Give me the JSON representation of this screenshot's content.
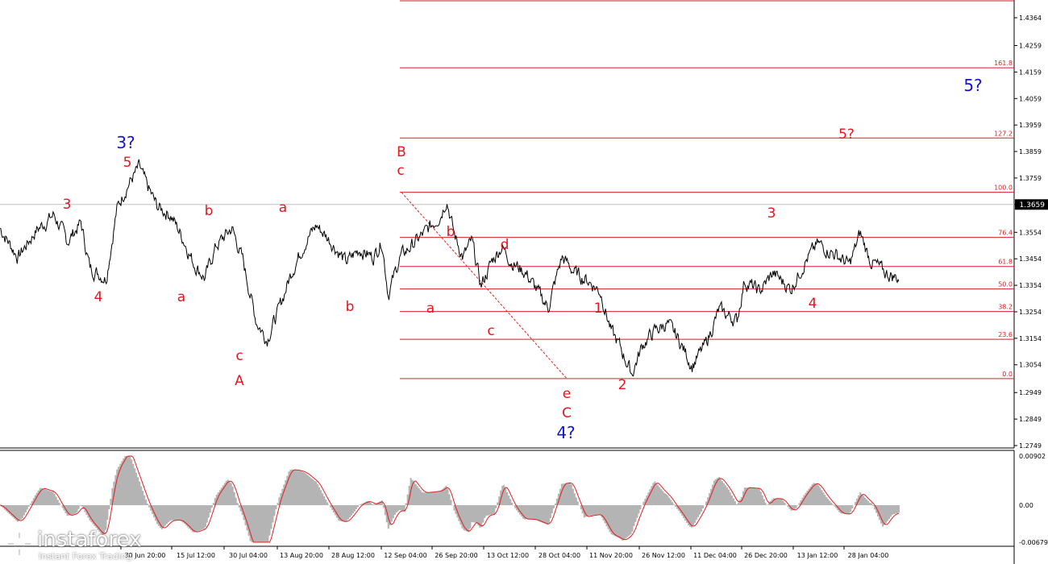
{
  "colors": {
    "price": "#000000",
    "wave_red": "#e8141c",
    "wave_blue": "#1414d2",
    "fib_line": "#d81e28",
    "fib_text": "#e02020",
    "axis": "#000000",
    "osc_hist": "#b4b4b4",
    "osc_line": "#e02020",
    "current_line": "#c0c0c0"
  },
  "logo": {
    "name": "instaforex",
    "tagline": "Instant Forex Trading",
    "icon": "instaforex-logo-icon"
  },
  "chart_data": {
    "type": "line",
    "instrument_panel": {
      "y_ticks": [
        "1.4364",
        "1.4259",
        "1.4159",
        "1.4059",
        "1.3959",
        "1.3859",
        "1.3759",
        "1.3659",
        "1.3554",
        "1.3454",
        "1.3354",
        "1.3254",
        "1.3154",
        "1.3054",
        "1.2949",
        "1.2849",
        "1.2749"
      ],
      "ylim": [
        1.2749,
        1.4364
      ],
      "current_price": "1.3659",
      "x_ticks": [
        "30 Jun 20:00",
        "15 Jul 12:00",
        "30 Jul 04:00",
        "13 Aug 20:00",
        "28 Aug 12:00",
        "12 Sep 04:00",
        "26 Sep 20:00",
        "13 Oct 12:00",
        "28 Oct 04:00",
        "11 Nov 20:00",
        "26 Nov 12:00",
        "11 Dec 04:00",
        "26 Dec 20:00",
        "13 Jan 12:00",
        "28 Jan 04:00"
      ],
      "price_path": [
        [
          0,
          1.357
        ],
        [
          0.02,
          1.346
        ],
        [
          0.04,
          1.356
        ],
        [
          0.06,
          1.362
        ],
        [
          0.075,
          1.352
        ],
        [
          0.09,
          1.359
        ],
        [
          0.1,
          1.342
        ],
        [
          0.118,
          1.338
        ],
        [
          0.13,
          1.364
        ],
        [
          0.14,
          1.372
        ],
        [
          0.155,
          1.38
        ],
        [
          0.162,
          1.374
        ],
        [
          0.175,
          1.365
        ],
        [
          0.19,
          1.362
        ],
        [
          0.205,
          1.352
        ],
        [
          0.215,
          1.344
        ],
        [
          0.228,
          1.338
        ],
        [
          0.24,
          1.35
        ],
        [
          0.258,
          1.357
        ],
        [
          0.27,
          1.345
        ],
        [
          0.285,
          1.322
        ],
        [
          0.297,
          1.315
        ],
        [
          0.31,
          1.326
        ],
        [
          0.325,
          1.341
        ],
        [
          0.34,
          1.352
        ],
        [
          0.352,
          1.358
        ],
        [
          0.368,
          1.352
        ],
        [
          0.385,
          1.344
        ],
        [
          0.4,
          1.349
        ],
        [
          0.415,
          1.346
        ],
        [
          0.425,
          1.352
        ],
        [
          0.432,
          1.332
        ],
        [
          0.445,
          1.346
        ],
        [
          0.46,
          1.351
        ],
        [
          0.475,
          1.356
        ],
        [
          0.49,
          1.362
        ],
        [
          0.497,
          1.368
        ],
        [
          0.505,
          1.355
        ],
        [
          0.515,
          1.346
        ],
        [
          0.525,
          1.352
        ],
        [
          0.535,
          1.335
        ],
        [
          0.548,
          1.345
        ],
        [
          0.558,
          1.35
        ],
        [
          0.57,
          1.344
        ],
        [
          0.585,
          1.34
        ],
        [
          0.6,
          1.332
        ],
        [
          0.61,
          1.327
        ],
        [
          0.625,
          1.346
        ],
        [
          0.64,
          1.34
        ],
        [
          0.655,
          1.337
        ],
        [
          0.668,
          1.333
        ],
        [
          0.68,
          1.318
        ],
        [
          0.69,
          1.312
        ],
        [
          0.703,
          1.302
        ],
        [
          0.715,
          1.313
        ],
        [
          0.728,
          1.318
        ],
        [
          0.742,
          1.321
        ],
        [
          0.755,
          1.315
        ],
        [
          0.77,
          1.305
        ],
        [
          0.785,
          1.313
        ],
        [
          0.8,
          1.326
        ],
        [
          0.82,
          1.322
        ],
        [
          0.828,
          1.337
        ],
        [
          0.845,
          1.333
        ],
        [
          0.86,
          1.34
        ],
        [
          0.88,
          1.334
        ],
        [
          0.895,
          1.344
        ],
        [
          0.91,
          1.351
        ],
        [
          0.93,
          1.347
        ],
        [
          0.945,
          1.343
        ],
        [
          0.957,
          1.355
        ],
        [
          0.968,
          1.345
        ],
        [
          0.985,
          1.34
        ],
        [
          1.0,
          1.338
        ]
      ]
    },
    "fibonacci_levels": [
      {
        "label": "161.8",
        "value": 1.4175
      },
      {
        "label": "127.2",
        "value": 1.391
      },
      {
        "label": "100.0",
        "value": 1.3705
      },
      {
        "label": "76.4",
        "value": 1.3535
      },
      {
        "label": "61.8",
        "value": 1.3425
      },
      {
        "label": "50.0",
        "value": 1.334
      },
      {
        "label": "38.2",
        "value": 1.3255
      },
      {
        "label": "23.6",
        "value": 1.315
      },
      {
        "label": "0.0",
        "value": 1.3002
      }
    ],
    "wave_labels_red": [
      "3",
      "5",
      "4",
      "b",
      "a",
      "a",
      "c",
      "A",
      "b",
      "B",
      "c",
      "b",
      "d",
      "a",
      "c",
      "e",
      "C",
      "1",
      "2",
      "3",
      "4",
      "5?"
    ],
    "wave_labels_blue": [
      "3?",
      "4?",
      "5?"
    ],
    "oscillator": {
      "y_ticks": [
        "0.00902",
        "0.00",
        "-0.00679"
      ],
      "ylim": [
        -0.00679,
        0.00902
      ]
    }
  }
}
